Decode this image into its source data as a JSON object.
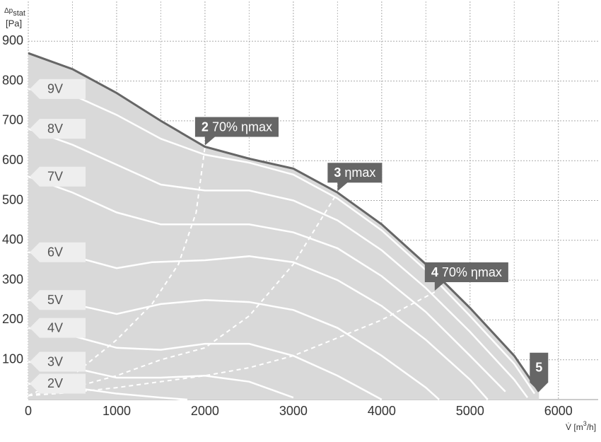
{
  "chart_data": {
    "type": "line",
    "y_label": {
      "main": "Δp",
      "sub": "stat",
      "unit": "[Pa]"
    },
    "x_label": {
      "main": "V̇",
      "pre": "[m",
      "sup": "3",
      "post": "/h]"
    },
    "xlim": [
      0,
      6450
    ],
    "ylim": [
      0,
      1000
    ],
    "xticks": [
      0,
      1000,
      2000,
      3000,
      4000,
      5000,
      6000
    ],
    "x_minor_ticks": [
      500,
      1500,
      2500,
      3500,
      4500,
      5500
    ],
    "yticks": [
      100,
      200,
      300,
      400,
      500,
      600,
      700,
      800,
      900
    ],
    "grid": true,
    "area_color": "#d9d9d9",
    "max_curve": {
      "color": "#666666",
      "x": [
        0,
        500,
        1000,
        1500,
        2000,
        2500,
        3000,
        3500,
        4000,
        4500,
        5000,
        5500,
        5780
      ],
      "values": [
        870,
        830,
        770,
        700,
        635,
        605,
        580,
        520,
        440,
        340,
        230,
        110,
        20
      ]
    },
    "series": [
      {
        "name": "9V",
        "color": "#ffffff",
        "x": [
          0,
          500,
          1000,
          1500,
          2000,
          2500,
          3000,
          3500,
          4000,
          4500,
          5000,
          5500,
          5730
        ],
        "values": [
          780,
          765,
          715,
          655,
          615,
          595,
          565,
          505,
          425,
          325,
          210,
          90,
          15
        ]
      },
      {
        "name": "8V",
        "color": "#ffffff",
        "x": [
          0,
          500,
          1000,
          1500,
          2000,
          2500,
          3000,
          3500,
          4000,
          4500,
          5000,
          5500,
          5650
        ],
        "values": [
          680,
          640,
          590,
          540,
          525,
          525,
          500,
          450,
          375,
          280,
          170,
          50,
          5
        ]
      },
      {
        "name": "7V",
        "color": "#ffffff",
        "x": [
          0,
          500,
          1000,
          1500,
          2000,
          2500,
          3000,
          3500,
          4000,
          4500,
          5000,
          5400
        ],
        "values": [
          560,
          520,
          470,
          440,
          440,
          440,
          420,
          380,
          310,
          220,
          110,
          20
        ]
      },
      {
        "name": "6V",
        "color": "#ffffff",
        "x": [
          0,
          500,
          1000,
          1400,
          2000,
          2500,
          3000,
          3500,
          4000,
          4500,
          5000,
          5200
        ],
        "values": [
          370,
          360,
          330,
          345,
          350,
          360,
          345,
          300,
          235,
          150,
          50,
          0
        ]
      },
      {
        "name": "5V",
        "color": "#ffffff",
        "x": [
          0,
          500,
          1000,
          1500,
          2000,
          2500,
          3000,
          3500,
          4000,
          4500,
          4650
        ],
        "values": [
          250,
          240,
          215,
          240,
          250,
          245,
          225,
          180,
          110,
          30,
          0
        ]
      },
      {
        "name": "4V",
        "color": "#ffffff",
        "x": [
          0,
          500,
          1000,
          1500,
          2000,
          2500,
          3000,
          3500,
          4000
        ],
        "values": [
          180,
          160,
          130,
          125,
          140,
          140,
          110,
          60,
          0
        ]
      },
      {
        "name": "3V",
        "color": "#ffffff",
        "x": [
          0,
          500,
          1000,
          1500,
          2000,
          2500,
          3000
        ],
        "values": [
          95,
          80,
          55,
          55,
          60,
          45,
          5
        ]
      },
      {
        "name": "2V",
        "color": "#ffffff",
        "x": [
          0,
          500,
          1000,
          1500,
          1800
        ],
        "values": [
          40,
          30,
          15,
          5,
          0
        ]
      }
    ],
    "operating_lines": [
      {
        "x": [
          0,
          500,
          1000,
          1400,
          1700,
          1900,
          2000
        ],
        "values": [
          10,
          60,
          150,
          240,
          340,
          470,
          635
        ]
      },
      {
        "x": [
          0,
          500,
          1000,
          1500,
          2000,
          2500,
          3000,
          3500
        ],
        "values": [
          10,
          30,
          60,
          100,
          130,
          210,
          340,
          520
        ]
      },
      {
        "x": [
          0,
          500,
          1000,
          1500,
          2000,
          2500,
          3000,
          3500,
          4000,
          4600
        ],
        "values": [
          10,
          18,
          30,
          45,
          60,
          80,
          110,
          155,
          200,
          270
        ]
      }
    ],
    "annotations": [
      {
        "number": "2",
        "text": "70% ηmax",
        "x": 2000,
        "y": 635
      },
      {
        "number": "3",
        "text": "ηmax",
        "x": 3500,
        "y": 520
      },
      {
        "number": "4",
        "text": "70% ηmax",
        "x": 4600,
        "y": 270
      },
      {
        "number": "5",
        "x": 5780,
        "y": 20
      }
    ]
  }
}
